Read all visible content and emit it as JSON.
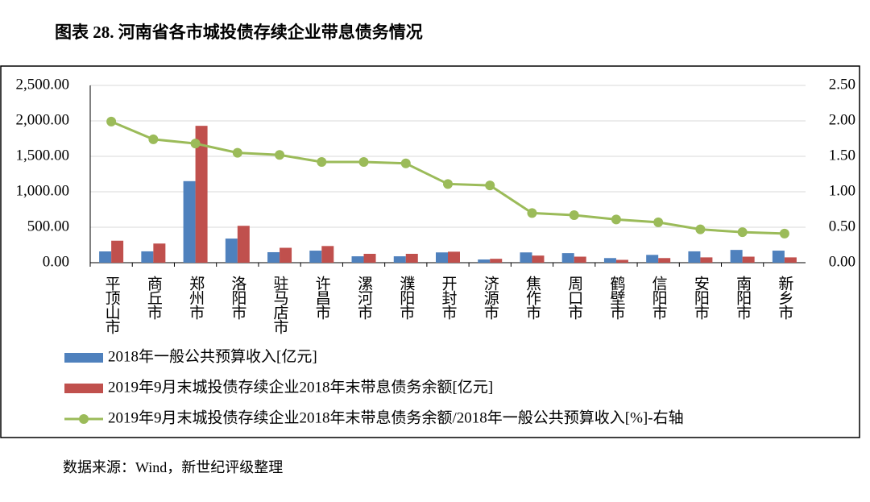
{
  "title": "图表 28. 河南省各市城投债存续企业带息债务情况",
  "source": "数据来源：Wind，新世纪评级整理",
  "chart_data": {
    "type": "bar",
    "categories": [
      "平顶山市",
      "商丘市",
      "郑州市",
      "洛阳市",
      "驻马店市",
      "许昌市",
      "漯河市",
      "濮阳市",
      "开封市",
      "济源市",
      "焦作市",
      "周口市",
      "鹤壁市",
      "信阳市",
      "安阳市",
      "南阳市",
      "新乡市"
    ],
    "series": [
      {
        "name": "2018年一般公共预算收入[亿元]",
        "color": "#4f81bd",
        "type": "bar",
        "values": [
          159,
          160,
          1150,
          340,
          148,
          170,
          90,
          90,
          145,
          45,
          145,
          135,
          65,
          110,
          160,
          180,
          170
        ]
      },
      {
        "name": "2019年9月末城投债存续企业2018年末带息债务余额[亿元]",
        "color": "#c0504d",
        "type": "bar",
        "values": [
          310,
          270,
          1930,
          520,
          210,
          235,
          125,
          125,
          155,
          55,
          100,
          85,
          40,
          65,
          75,
          85,
          75
        ]
      },
      {
        "name": "2019年9月末城投债存续企业2018年末带息债务余额/2018年一般公共预算收入[%]-右轴",
        "color": "#9bbb59",
        "type": "line",
        "axis": "y2",
        "values": [
          1.99,
          1.74,
          1.68,
          1.55,
          1.52,
          1.42,
          1.42,
          1.4,
          1.11,
          1.09,
          0.7,
          0.67,
          0.61,
          0.57,
          0.47,
          0.43,
          0.41
        ]
      }
    ],
    "ylim": [
      0,
      2500
    ],
    "yticks": [
      {
        "value": 0,
        "label": "0.00"
      },
      {
        "value": 500,
        "label": "500.00"
      },
      {
        "value": 1000,
        "label": "1,000.00"
      },
      {
        "value": 1500,
        "label": "1,500.00"
      },
      {
        "value": 2000,
        "label": "2,000.00"
      },
      {
        "value": 2500,
        "label": "2,500.00"
      }
    ],
    "y2lim": [
      0,
      2.5
    ],
    "y2ticks": [
      {
        "value": 0,
        "label": "0.00"
      },
      {
        "value": 0.5,
        "label": "0.50"
      },
      {
        "value": 1,
        "label": "1.00"
      },
      {
        "value": 1.5,
        "label": "1.50"
      },
      {
        "value": 2,
        "label": "2.00"
      },
      {
        "value": 2.5,
        "label": "2.50"
      }
    ],
    "grid": true
  }
}
